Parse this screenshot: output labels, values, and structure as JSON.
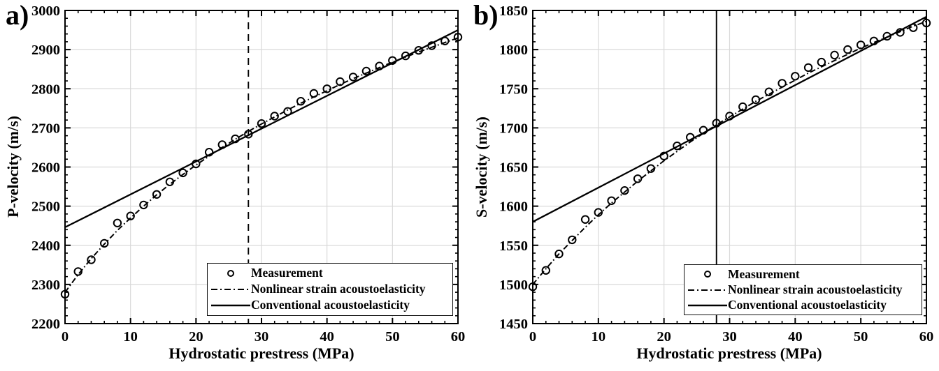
{
  "figure": {
    "background": "#ffffff",
    "ink_color": "#000000",
    "grid_color": "#d9d9d9"
  },
  "legend": {
    "items": [
      {
        "label": "Measurement",
        "marker": "open-circle"
      },
      {
        "label": "Nonlinear strain acoustoelasticity",
        "marker": "dash-dot-line"
      },
      {
        "label": "Conventional acoustoelasticity",
        "marker": "solid-line"
      }
    ]
  },
  "chart_data": [
    {
      "id": "a",
      "type": "line",
      "panel_label": "a)",
      "xlabel": "Hydrostatic prestress (MPa)",
      "ylabel": "P-velocity (m/s)",
      "xlim": [
        0,
        60
      ],
      "ylim": [
        2200,
        3000
      ],
      "xticks": [
        0,
        10,
        20,
        30,
        40,
        50,
        60
      ],
      "yticks": [
        2200,
        2300,
        2400,
        2500,
        2600,
        2700,
        2800,
        2900,
        3000
      ],
      "x_minor_step": 2,
      "y_minor_step": 20,
      "grid": true,
      "legend_position": "lower-right",
      "vline": {
        "x": 28,
        "style": "dashed"
      },
      "x": [
        0,
        2,
        4,
        6,
        8,
        10,
        12,
        14,
        16,
        18,
        20,
        22,
        24,
        26,
        28,
        30,
        32,
        34,
        36,
        38,
        40,
        42,
        44,
        46,
        48,
        50,
        52,
        54,
        56,
        58,
        60
      ],
      "series": [
        {
          "name": "Measurement",
          "style": "scatter-circle",
          "values": [
            2275,
            2333,
            2363,
            2405,
            2457,
            2475,
            2503,
            2530,
            2562,
            2585,
            2608,
            2638,
            2657,
            2672,
            2684,
            2711,
            2730,
            2742,
            2768,
            2788,
            2800,
            2818,
            2830,
            2845,
            2858,
            2872,
            2884,
            2898,
            2910,
            2922,
            2932
          ]
        },
        {
          "name": "Nonlinear strain acoustoelasticity",
          "style": "dash-dot",
          "values": [
            2280,
            2325,
            2366,
            2403,
            2438,
            2470,
            2500,
            2529,
            2556,
            2581,
            2605,
            2628,
            2650,
            2671,
            2691,
            2710,
            2728,
            2746,
            2763,
            2779,
            2795,
            2811,
            2826,
            2840,
            2854,
            2868,
            2881,
            2894,
            2906,
            2918,
            2930
          ]
        },
        {
          "name": "Conventional acoustoelasticity",
          "style": "solid",
          "x": [
            0,
            60
          ],
          "values": [
            2446,
            2950
          ]
        }
      ]
    },
    {
      "id": "b",
      "type": "line",
      "panel_label": "b)",
      "xlabel": "Hydrostatic prestress (MPa)",
      "ylabel": "S-velocity (m/s)",
      "xlim": [
        0,
        60
      ],
      "ylim": [
        1450,
        1850
      ],
      "xticks": [
        0,
        10,
        20,
        30,
        40,
        50,
        60
      ],
      "yticks": [
        1450,
        1500,
        1550,
        1600,
        1650,
        1700,
        1750,
        1800,
        1850
      ],
      "x_minor_step": 2,
      "y_minor_step": 10,
      "grid": true,
      "legend_position": "lower-right",
      "vline": {
        "x": 28,
        "style": "solid"
      },
      "x": [
        0,
        2,
        4,
        6,
        8,
        10,
        12,
        14,
        16,
        18,
        20,
        22,
        24,
        26,
        28,
        30,
        32,
        34,
        36,
        38,
        40,
        42,
        44,
        46,
        48,
        50,
        52,
        54,
        56,
        58,
        60
      ],
      "series": [
        {
          "name": "Measurement",
          "style": "scatter-circle",
          "values": [
            1497,
            1518,
            1539,
            1557,
            1583,
            1592,
            1607,
            1620,
            1635,
            1648,
            1664,
            1677,
            1688,
            1697,
            1706,
            1715,
            1727,
            1736,
            1746,
            1757,
            1766,
            1777,
            1784,
            1793,
            1800,
            1806,
            1811,
            1817,
            1822,
            1828,
            1834
          ]
        },
        {
          "name": "Nonlinear strain acoustoelasticity",
          "style": "dash-dot",
          "values": [
            1500,
            1520,
            1539,
            1556,
            1573,
            1589,
            1604,
            1618,
            1632,
            1645,
            1658,
            1670,
            1682,
            1693,
            1704,
            1714,
            1724,
            1734,
            1743,
            1752,
            1761,
            1770,
            1778,
            1786,
            1794,
            1802,
            1809,
            1816,
            1823,
            1830,
            1836
          ]
        },
        {
          "name": "Conventional acoustoelasticity",
          "style": "solid",
          "x": [
            0,
            60
          ],
          "values": [
            1580,
            1842
          ]
        }
      ]
    }
  ]
}
